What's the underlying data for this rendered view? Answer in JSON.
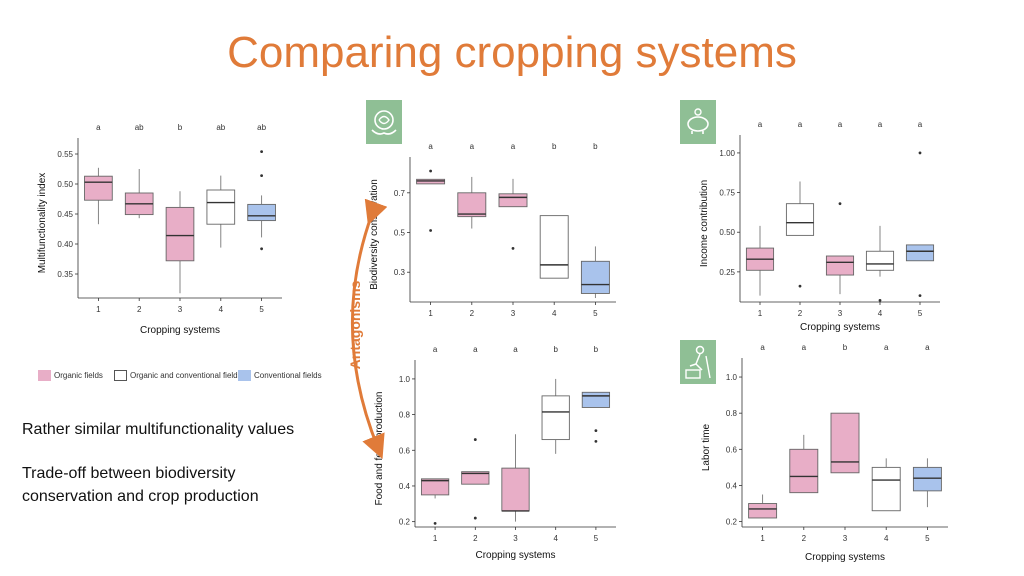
{
  "slide": {
    "title": "Comparing cropping systems",
    "antagonism_label": "Antagonisms",
    "notes": [
      "Rather similar multifunctionality values",
      "Trade-off between biodiversity",
      "conservation and crop production"
    ]
  },
  "legend": {
    "organic": "Organic fields",
    "mixed": "Organic and conventional fields",
    "conventional": "Conventional fields"
  },
  "colors": {
    "accent": "#e07b39",
    "organic": "#e8aec7",
    "mixed": "#ffffff",
    "conventional": "#a9c3ec",
    "icon_bg": "#8fbf95"
  },
  "icons": [
    "biodiversity-icon",
    "piggy-bank-icon",
    "labor-worker-icon"
  ],
  "chart_data": [
    {
      "id": "multi",
      "type": "box",
      "ylabel": "Multifunctionality index",
      "xlabel": "Cropping systems",
      "categories": [
        "1",
        "2",
        "3",
        "4",
        "5"
      ],
      "yticks": [
        "0.35",
        "0.40",
        "0.45",
        "0.50",
        "0.55"
      ],
      "ylim": [
        0.31,
        0.56
      ],
      "letters": [
        "a",
        "ab",
        "b",
        "ab",
        "ab"
      ],
      "fills": [
        "organic",
        "organic",
        "organic",
        "mixed",
        "conventional"
      ],
      "boxes": [
        {
          "q1": 0.473,
          "med": 0.503,
          "q3": 0.513,
          "lo": 0.433,
          "hi": 0.527,
          "out": []
        },
        {
          "q1": 0.449,
          "med": 0.467,
          "q3": 0.485,
          "lo": 0.443,
          "hi": 0.525,
          "out": []
        },
        {
          "q1": 0.372,
          "med": 0.414,
          "q3": 0.461,
          "lo": 0.318,
          "hi": 0.488,
          "out": []
        },
        {
          "q1": 0.433,
          "med": 0.469,
          "q3": 0.49,
          "lo": 0.394,
          "hi": 0.514,
          "out": []
        },
        {
          "q1": 0.439,
          "med": 0.447,
          "q3": 0.466,
          "lo": 0.411,
          "hi": 0.481,
          "out": [
            0.554,
            0.514,
            0.392
          ]
        }
      ]
    },
    {
      "id": "bio",
      "type": "box",
      "ylabel": "Biodiversity conservation",
      "xlabel": "",
      "categories": [
        "1",
        "2",
        "3",
        "4",
        "5"
      ],
      "yticks": [
        "0.3",
        "0.5",
        "0.7"
      ],
      "ylim": [
        0.15,
        0.83
      ],
      "letters": [
        "a",
        "a",
        "a",
        "b",
        "b"
      ],
      "fills": [
        "organic",
        "organic",
        "organic",
        "mixed",
        "conventional"
      ],
      "boxes": [
        {
          "q1": 0.745,
          "med": 0.76,
          "q3": 0.768,
          "lo": 0.745,
          "hi": 0.768,
          "out": [
            0.81,
            0.51
          ]
        },
        {
          "q1": 0.58,
          "med": 0.593,
          "q3": 0.7,
          "lo": 0.52,
          "hi": 0.78,
          "out": []
        },
        {
          "q1": 0.63,
          "med": 0.677,
          "q3": 0.695,
          "lo": 0.63,
          "hi": 0.77,
          "out": [
            0.42
          ]
        },
        {
          "q1": 0.27,
          "med": 0.337,
          "q3": 0.585,
          "lo": 0.27,
          "hi": 0.585,
          "out": []
        },
        {
          "q1": 0.193,
          "med": 0.238,
          "q3": 0.355,
          "lo": 0.17,
          "hi": 0.43,
          "out": []
        }
      ]
    },
    {
      "id": "food",
      "type": "box",
      "ylabel": "Food and feed production",
      "xlabel": "Cropping systems",
      "categories": [
        "1",
        "2",
        "3",
        "4",
        "5"
      ],
      "yticks": [
        "0.2",
        "0.4",
        "0.6",
        "0.8",
        "1.0"
      ],
      "ylim": [
        0.17,
        1.05
      ],
      "letters": [
        "a",
        "a",
        "a",
        "b",
        "b"
      ],
      "fills": [
        "organic",
        "organic",
        "organic",
        "mixed",
        "conventional"
      ],
      "boxes": [
        {
          "q1": 0.35,
          "med": 0.43,
          "q3": 0.44,
          "lo": 0.33,
          "hi": 0.44,
          "out": [
            0.19
          ]
        },
        {
          "q1": 0.41,
          "med": 0.47,
          "q3": 0.48,
          "lo": 0.41,
          "hi": 0.48,
          "out": [
            0.66,
            0.22
          ]
        },
        {
          "q1": 0.26,
          "med": 0.26,
          "q3": 0.5,
          "lo": 0.2,
          "hi": 0.69,
          "out": []
        },
        {
          "q1": 0.66,
          "med": 0.815,
          "q3": 0.905,
          "lo": 0.58,
          "hi": 1.0,
          "out": []
        },
        {
          "q1": 0.84,
          "med": 0.905,
          "q3": 0.925,
          "lo": 0.84,
          "hi": 0.925,
          "out": [
            0.71,
            0.65
          ]
        }
      ]
    },
    {
      "id": "income",
      "type": "box",
      "ylabel": "Income contribution",
      "xlabel": "Cropping systems",
      "categories": [
        "1",
        "2",
        "3",
        "4",
        "5"
      ],
      "yticks": [
        "0.25",
        "0.50",
        "0.75",
        "1.00"
      ],
      "ylim": [
        0.06,
        1.05
      ],
      "letters": [
        "a",
        "a",
        "a",
        "a",
        "a"
      ],
      "fills": [
        "organic",
        "mixed",
        "organic",
        "mixed",
        "conventional"
      ],
      "boxes": [
        {
          "q1": 0.26,
          "med": 0.33,
          "q3": 0.4,
          "lo": 0.1,
          "hi": 0.54,
          "out": []
        },
        {
          "q1": 0.48,
          "med": 0.56,
          "q3": 0.68,
          "lo": 0.48,
          "hi": 0.82,
          "out": [
            0.16
          ]
        },
        {
          "q1": 0.23,
          "med": 0.31,
          "q3": 0.35,
          "lo": 0.11,
          "hi": 0.35,
          "out": [
            0.68
          ]
        },
        {
          "q1": 0.26,
          "med": 0.3,
          "q3": 0.38,
          "lo": 0.22,
          "hi": 0.54,
          "out": [
            0.07
          ]
        },
        {
          "q1": 0.32,
          "med": 0.38,
          "q3": 0.42,
          "lo": 0.32,
          "hi": 0.42,
          "out": [
            1.0,
            0.1
          ]
        }
      ]
    },
    {
      "id": "labor",
      "type": "box",
      "ylabel": "Labor time",
      "xlabel": "Cropping systems",
      "categories": [
        "1",
        "2",
        "3",
        "4",
        "5"
      ],
      "yticks": [
        "0.2",
        "0.4",
        "0.6",
        "0.8",
        "1.0"
      ],
      "ylim": [
        0.17,
        1.05
      ],
      "letters": [
        "a",
        "a",
        "b",
        "a",
        "a"
      ],
      "fills": [
        "organic",
        "organic",
        "organic",
        "mixed",
        "conventional"
      ],
      "boxes": [
        {
          "q1": 0.22,
          "med": 0.27,
          "q3": 0.3,
          "lo": 0.22,
          "hi": 0.35,
          "out": []
        },
        {
          "q1": 0.36,
          "med": 0.45,
          "q3": 0.6,
          "lo": 0.36,
          "hi": 0.68,
          "out": []
        },
        {
          "q1": 0.47,
          "med": 0.53,
          "q3": 0.8,
          "lo": 0.47,
          "hi": 0.8,
          "out": []
        },
        {
          "q1": 0.26,
          "med": 0.43,
          "q3": 0.5,
          "lo": 0.26,
          "hi": 0.55,
          "out": []
        },
        {
          "q1": 0.37,
          "med": 0.44,
          "q3": 0.5,
          "lo": 0.28,
          "hi": 0.55,
          "out": []
        }
      ]
    }
  ]
}
